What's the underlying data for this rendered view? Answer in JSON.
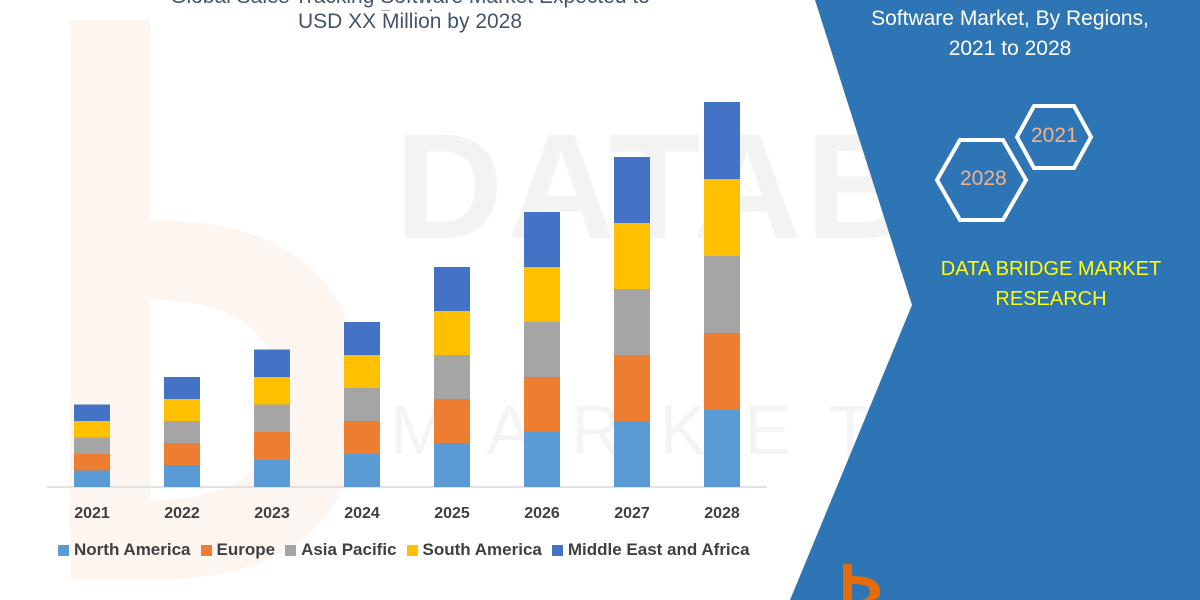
{
  "title": {
    "line1": "Global Sales Tracking Software Market Expected to Reach",
    "line2": "USD XX Million by 2028"
  },
  "panel": {
    "title_line1": "Software Market, By Regions,",
    "title_line2": "2021 to 2028",
    "hex_a": "2021",
    "hex_b": "2028",
    "brand_line1": "DATA BRIDGE MARKET",
    "brand_line2": "RESEARCH",
    "logo_text": "DATA BRIDGE",
    "panel_color": "#2e75b6",
    "brand_color": "#ffff00"
  },
  "watermark": {
    "text": "DATABRIDGE",
    "subtext": "MARKET RESEARCH"
  },
  "chart_data": {
    "type": "bar",
    "stacked": true,
    "categories": [
      "2021",
      "2022",
      "2023",
      "2024",
      "2025",
      "2026",
      "2027",
      "2028"
    ],
    "series": [
      {
        "name": "North America",
        "color": "#5b9bd5",
        "values": [
          3,
          4,
          5,
          6,
          8,
          10,
          12,
          14
        ]
      },
      {
        "name": "Europe",
        "color": "#ed7d31",
        "values": [
          3,
          4,
          5,
          6,
          8,
          10,
          12,
          14
        ]
      },
      {
        "name": "Asia Pacific",
        "color": "#a5a5a5",
        "values": [
          3,
          4,
          5,
          6,
          8,
          10,
          12,
          14
        ]
      },
      {
        "name": "South America",
        "color": "#ffc000",
        "values": [
          3,
          4,
          5,
          6,
          8,
          10,
          12,
          14
        ]
      },
      {
        "name": "Middle East and Africa",
        "color": "#4472c4",
        "values": [
          3,
          4,
          5,
          6,
          8,
          10,
          12,
          14
        ]
      }
    ],
    "ylim": [
      0,
      70
    ],
    "grid": false,
    "legend": "bottom"
  }
}
